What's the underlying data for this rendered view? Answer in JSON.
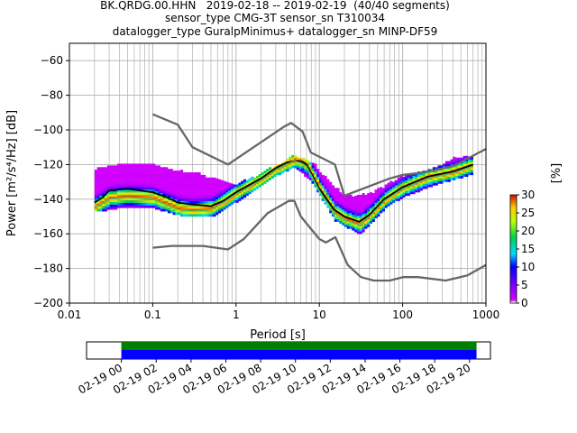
{
  "header": {
    "title_line1": "BK.QRDG.00.HHN   2019-02-18 -- 2019-02-19  (40/40 segments)",
    "title_line2": "sensor_type CMG-3T sensor_sn T310034",
    "title_line3": "datalogger_type GuralpMinimus+ datalogger_sn MINP-DF59"
  },
  "chart_data": [
    {
      "type": "heatmap",
      "title": "BK.QRDG.00.HHN   2019-02-18 -- 2019-02-19  (40/40 segments)",
      "xlabel": "Period [s]",
      "ylabel": "Power [m²/s⁴/Hz] [dB]",
      "x_scale": "log",
      "xlim": [
        0.01,
        1000
      ],
      "ylim": [
        -200,
        -50
      ],
      "x_ticks": [
        0.01,
        0.1,
        1,
        10,
        100,
        1000
      ],
      "x_tick_labels": [
        "0.01",
        "0.1",
        "1",
        "10",
        "100",
        "1000"
      ],
      "y_ticks": [
        -200,
        -180,
        -160,
        -140,
        -120,
        -100,
        -80,
        -60
      ],
      "y_tick_labels": [
        "−200",
        "−180",
        "−160",
        "−140",
        "−120",
        "−100",
        "−80",
        "−60"
      ],
      "grid": true,
      "colorbar": {
        "label": "[%]",
        "range": [
          0,
          30
        ],
        "ticks": [
          0,
          5,
          10,
          15,
          20,
          25,
          30
        ],
        "tick_labels": [
          "0",
          "5",
          "10",
          "15",
          "20",
          "25",
          "30"
        ]
      },
      "series": [
        {
          "name": "",
          "role": "noise model upper",
          "color": "#666666",
          "points": [
            [
              0.1,
              -91
            ],
            [
              0.2,
              -97
            ],
            [
              0.3,
              -110
            ],
            [
              0.8,
              -120
            ],
            [
              3.8,
              -98
            ],
            [
              4.6,
              -96
            ],
            [
              6.3,
              -101
            ],
            [
              7.9,
              -113
            ],
            [
              15.4,
              -120
            ],
            [
              20,
              -138
            ],
            [
              70,
              -128
            ],
            [
              100,
              -126
            ],
            [
              150,
              -125
            ],
            [
              200,
              -124
            ],
            [
              400,
              -121
            ],
            [
              1000,
              -111
            ]
          ]
        },
        {
          "name": "",
          "role": "noise model lower",
          "color": "#666666",
          "points": [
            [
              0.1,
              -168
            ],
            [
              0.17,
              -167
            ],
            [
              0.4,
              -167
            ],
            [
              0.8,
              -169
            ],
            [
              1.24,
              -163
            ],
            [
              2.4,
              -148
            ],
            [
              4.3,
              -141
            ],
            [
              5,
              -141
            ],
            [
              6,
              -150
            ],
            [
              10,
              -163
            ],
            [
              12,
              -165
            ],
            [
              15.6,
              -162
            ],
            [
              21.9,
              -178
            ],
            [
              31.6,
              -185
            ],
            [
              45,
              -187
            ],
            [
              70,
              -187
            ],
            [
              101,
              -185
            ],
            [
              154,
              -185
            ],
            [
              328,
              -187
            ],
            [
              600,
              -184
            ],
            [
              1000,
              -178
            ]
          ]
        },
        {
          "name": "",
          "role": "mean PSD",
          "color": "#000000",
          "points": [
            [
              0.02,
              -142
            ],
            [
              0.025,
              -139
            ],
            [
              0.03,
              -135
            ],
            [
              0.05,
              -134
            ],
            [
              0.1,
              -136
            ],
            [
              0.15,
              -139
            ],
            [
              0.2,
              -142
            ],
            [
              0.3,
              -143
            ],
            [
              0.5,
              -144
            ],
            [
              0.7,
              -141
            ],
            [
              1,
              -136
            ],
            [
              2,
              -128
            ],
            [
              3,
              -122
            ],
            [
              4,
              -119
            ],
            [
              5,
              -118
            ],
            [
              6,
              -118
            ],
            [
              7,
              -120
            ],
            [
              8,
              -125
            ],
            [
              10,
              -134
            ],
            [
              15,
              -146
            ],
            [
              20,
              -150
            ],
            [
              30,
              -153
            ],
            [
              40,
              -149
            ],
            [
              60,
              -140
            ],
            [
              100,
              -133
            ],
            [
              200,
              -127
            ],
            [
              400,
              -124
            ],
            [
              700,
              -120
            ]
          ]
        },
        {
          "name": "",
          "role": "mode PSD",
          "color": "#2ecc71",
          "points": [
            [
              0.02,
              -145
            ],
            [
              0.03,
              -140
            ],
            [
              0.05,
              -139
            ],
            [
              0.1,
              -140
            ],
            [
              0.2,
              -146
            ],
            [
              0.3,
              -147
            ],
            [
              0.5,
              -146
            ],
            [
              0.7,
              -142
            ],
            [
              1,
              -137
            ],
            [
              2,
              -129
            ],
            [
              3,
              -123
            ],
            [
              4,
              -120
            ],
            [
              5,
              -118
            ],
            [
              6,
              -119
            ],
            [
              7,
              -121
            ],
            [
              8,
              -126
            ],
            [
              10,
              -135
            ],
            [
              15,
              -148
            ],
            [
              20,
              -152
            ],
            [
              30,
              -155
            ],
            [
              40,
              -150
            ],
            [
              60,
              -141
            ],
            [
              100,
              -134
            ],
            [
              200,
              -128
            ],
            [
              400,
              -125
            ],
            [
              700,
              -121
            ]
          ]
        }
      ],
      "histogram_envelope": {
        "upper": [
          [
            0.02,
            -124
          ],
          [
            0.05,
            -120
          ],
          [
            0.1,
            -122
          ],
          [
            0.3,
            -126
          ],
          [
            1,
            -133
          ],
          [
            3,
            -122
          ],
          [
            5,
            -116
          ],
          [
            8,
            -120
          ],
          [
            12,
            -130
          ],
          [
            20,
            -140
          ],
          [
            40,
            -138
          ],
          [
            100,
            -128
          ],
          [
            200,
            -124
          ],
          [
            400,
            -118
          ],
          [
            700,
            -116
          ]
        ],
        "lower": [
          [
            0.02,
            -147
          ],
          [
            0.05,
            -144
          ],
          [
            0.1,
            -145
          ],
          [
            0.2,
            -149
          ],
          [
            0.5,
            -150
          ],
          [
            1,
            -141
          ],
          [
            3,
            -126
          ],
          [
            5,
            -121
          ],
          [
            8,
            -130
          ],
          [
            15,
            -152
          ],
          [
            30,
            -160
          ],
          [
            60,
            -145
          ],
          [
            100,
            -138
          ],
          [
            300,
            -130
          ],
          [
            700,
            -125
          ]
        ]
      }
    },
    {
      "type": "timeline",
      "x_tick_labels": [
        "02-19 00",
        "02-19 02",
        "02-19 04",
        "02-19 06",
        "02-19 08",
        "02-19 10",
        "02-19 12",
        "02-19 14",
        "02-19 16",
        "02-19 18",
        "02-19 20"
      ],
      "bars": [
        {
          "name": "",
          "color": "#008000",
          "start_hours": 0,
          "end_hours": 20.4
        },
        {
          "name": "",
          "color": "#0000ff",
          "start_hours": 0,
          "end_hours": 20.4
        }
      ],
      "xlim_hours": [
        -2,
        21.2
      ]
    }
  ]
}
